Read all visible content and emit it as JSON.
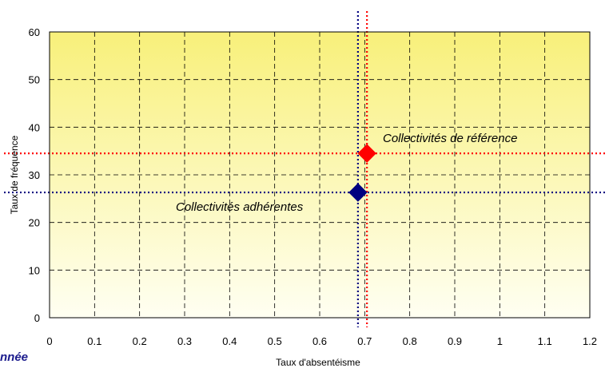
{
  "chart_data": {
    "type": "scatter",
    "xlabel": "Taux d'absentéisme",
    "ylabel": "Taux de fréquence",
    "xlim": [
      0,
      1.2
    ],
    "ylim": [
      0,
      60
    ],
    "x_ticks": [
      "0",
      "0.1",
      "0.2",
      "0.3",
      "0.4",
      "0.5",
      "0.6",
      "0.7",
      "0.8",
      "0.9",
      "1",
      "1.1",
      "1.2"
    ],
    "y_ticks": [
      "0",
      "10",
      "20",
      "30",
      "40",
      "50",
      "60"
    ],
    "grid": true,
    "series": [
      {
        "name": "Collectivités adhérentes",
        "x": 0.685,
        "y": 26.3,
        "color": "#000080",
        "marker": "diamond"
      },
      {
        "name": "Collectivités de référence",
        "x": 0.705,
        "y": 34.5,
        "color": "#ff0000",
        "marker": "diamond"
      }
    ],
    "reference_lines": [
      {
        "series": "Collectivités adhérentes",
        "color": "#000080",
        "style": "dotted"
      },
      {
        "series": "Collectivités de référence",
        "color": "#ff0000",
        "style": "dotted"
      }
    ],
    "background_gradient": [
      "#f8f07a",
      "#fffff2"
    ],
    "clipped_text": "nnée"
  }
}
